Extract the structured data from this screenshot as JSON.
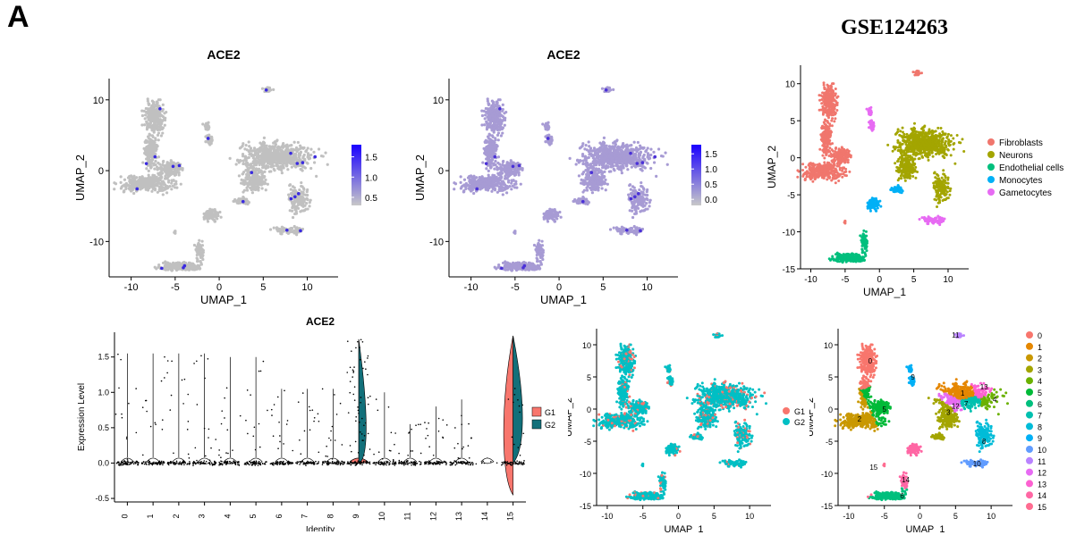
{
  "figure_label": "A",
  "dataset_title": "GSE124263",
  "chart_data": [
    {
      "id": "umap-ace2-a",
      "type": "scatter",
      "title": "ACE2",
      "xlabel": "UMAP_1",
      "ylabel": "UMAP_2",
      "xlim": [
        -12.5,
        13.5
      ],
      "ylim": [
        -15,
        13
      ],
      "xticks": [
        -10,
        -5,
        0,
        5,
        10
      ],
      "yticks": [
        -10,
        0,
        10
      ],
      "background_color": "#c0c0c0",
      "highlight_color": "#3a2ae0",
      "colorbar": {
        "ticks": [
          0.5,
          1.0,
          1.5
        ],
        "tick_labels": [
          "0.5",
          "1.0",
          "1.5"
        ],
        "min": 0.3,
        "max": 1.8,
        "low_color": "#c8c8c8",
        "high_color": "#1a00ff"
      }
    },
    {
      "id": "umap-ace2-b",
      "type": "scatter",
      "title": "ACE2",
      "xlabel": "UMAP_1",
      "ylabel": "UMAP_2",
      "xlim": [
        -12.5,
        13.5
      ],
      "ylim": [
        -15,
        13
      ],
      "xticks": [
        -10,
        -5,
        0,
        5,
        10
      ],
      "yticks": [
        -10,
        0,
        10
      ],
      "background_color": "#a79bd4",
      "highlight_color": "#4a30d8",
      "colorbar": {
        "ticks": [
          0.0,
          0.5,
          1.0,
          1.5
        ],
        "tick_labels": [
          "0.0",
          "0.5",
          "1.0",
          "1.5"
        ],
        "min": -0.2,
        "max": 1.8,
        "low_color": "#c8c8c8",
        "high_color": "#1a00ff"
      }
    },
    {
      "id": "umap-celltype",
      "type": "scatter",
      "title": "",
      "xlabel": "UMAP_1",
      "ylabel": "UMAP_2",
      "xlim": [
        -11.5,
        13
      ],
      "ylim": [
        -15,
        12.5
      ],
      "xticks": [
        -10,
        -5,
        0,
        5,
        10
      ],
      "yticks": [
        -15,
        -10,
        -5,
        0,
        5,
        10
      ],
      "legend": [
        {
          "label": "Fibroblasts",
          "color": "#f0766d"
        },
        {
          "label": "Neurons",
          "color": "#a3a500"
        },
        {
          "label": "Endothelial cells",
          "color": "#00bf7d"
        },
        {
          "label": "Monocytes",
          "color": "#00b0f6"
        },
        {
          "label": "Gametocytes",
          "color": "#e76bf3"
        }
      ],
      "legend_position": "right"
    },
    {
      "id": "violin-ace2",
      "type": "violin",
      "title": "ACE2",
      "xlabel": "Identity",
      "ylabel": "Expression Level",
      "categories": [
        "0",
        "1",
        "2",
        "3",
        "4",
        "5",
        "6",
        "7",
        "8",
        "9",
        "10",
        "11",
        "12",
        "13",
        "14",
        "15"
      ],
      "ylim": [
        -0.55,
        1.85
      ],
      "yticks": [
        -0.5,
        0.0,
        0.5,
        1.0,
        1.5
      ],
      "ytick_labels": [
        "-0.5",
        "0.0",
        "0.5",
        "1.0",
        "1.5"
      ],
      "violin_max": [
        1.55,
        1.55,
        1.55,
        1.55,
        1.5,
        1.5,
        1.05,
        1.05,
        1.05,
        1.75,
        1.0,
        0.55,
        0.8,
        0.9,
        0.02,
        1.8
      ],
      "violin_min": [
        -0.05,
        -0.03,
        -0.02,
        -0.03,
        -0.02,
        -0.02,
        -0.02,
        -0.02,
        -0.02,
        -0.01,
        -0.01,
        -0.01,
        -0.01,
        -0.01,
        -0.01,
        -0.45
      ],
      "legend": [
        {
          "label": "G1",
          "color": "#f8766d"
        },
        {
          "label": "G2",
          "color": "#12707a"
        }
      ],
      "legend_position": "right"
    },
    {
      "id": "umap-group",
      "type": "scatter",
      "title": "",
      "xlabel": "UMAP_1",
      "ylabel": "UMAP_2",
      "xlim": [
        -11.5,
        13
      ],
      "ylim": [
        -15,
        12.5
      ],
      "xticks": [
        -10,
        -5,
        0,
        5,
        10
      ],
      "yticks": [
        -15,
        -10,
        -5,
        0,
        5,
        10
      ],
      "legend": [
        {
          "label": "G1",
          "color": "#f8766d"
        },
        {
          "label": "G2",
          "color": "#00bfc4"
        }
      ],
      "legend_position": "right"
    },
    {
      "id": "umap-cluster",
      "type": "scatter",
      "title": "",
      "xlabel": "UMAP_1",
      "ylabel": "UMAP_2",
      "xlim": [
        -11.5,
        13
      ],
      "ylim": [
        -15,
        12.5
      ],
      "xticks": [
        -10,
        -5,
        0,
        5,
        10
      ],
      "yticks": [
        -15,
        -10,
        -5,
        0,
        5,
        10
      ],
      "legend": [
        {
          "label": "0",
          "color": "#f8766d"
        },
        {
          "label": "1",
          "color": "#e58700"
        },
        {
          "label": "2",
          "color": "#c99800"
        },
        {
          "label": "3",
          "color": "#a3a500"
        },
        {
          "label": "4",
          "color": "#6bb100"
        },
        {
          "label": "5",
          "color": "#00ba38"
        },
        {
          "label": "6",
          "color": "#00bf7d"
        },
        {
          "label": "7",
          "color": "#00c0af"
        },
        {
          "label": "8",
          "color": "#00bcd8"
        },
        {
          "label": "9",
          "color": "#00b0f6"
        },
        {
          "label": "10",
          "color": "#619cff"
        },
        {
          "label": "11",
          "color": "#b983ff"
        },
        {
          "label": "12",
          "color": "#e76bf3"
        },
        {
          "label": "13",
          "color": "#fd61d1"
        },
        {
          "label": "14",
          "color": "#ff67a4"
        },
        {
          "label": "15",
          "color": "#ff6c91"
        }
      ],
      "cluster_labels": [
        {
          "label": "0",
          "x": -7,
          "y": 7.5
        },
        {
          "label": "1",
          "x": 6,
          "y": 2.5
        },
        {
          "label": "2",
          "x": -8.5,
          "y": -1.5
        },
        {
          "label": "3",
          "x": 4,
          "y": -0.5
        },
        {
          "label": "4",
          "x": 10.5,
          "y": 1.5
        },
        {
          "label": "5",
          "x": -5,
          "y": 0
        },
        {
          "label": "6",
          "x": -2.5,
          "y": -13.5
        },
        {
          "label": "7",
          "x": 6.5,
          "y": 0.8
        },
        {
          "label": "8",
          "x": 9,
          "y": -5
        },
        {
          "label": "9",
          "x": -1,
          "y": 5
        },
        {
          "label": "10",
          "x": 8,
          "y": -8.5
        },
        {
          "label": "11",
          "x": 5,
          "y": 11.5
        },
        {
          "label": "12",
          "x": 5,
          "y": 0.5
        },
        {
          "label": "13",
          "x": 9,
          "y": 3.5
        },
        {
          "label": "14",
          "x": -2,
          "y": -11
        },
        {
          "label": "15",
          "x": -6.5,
          "y": -9
        }
      ],
      "legend_position": "right"
    }
  ]
}
